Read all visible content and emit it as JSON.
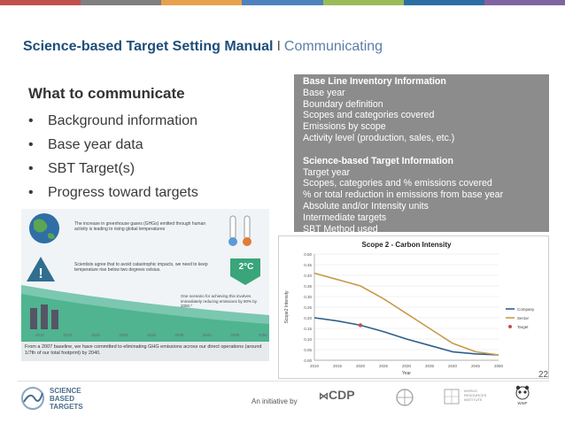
{
  "slide": {
    "title": "Science-based Target Setting Manual",
    "separator": "I",
    "subtitle": "Communicating",
    "accent_colors": [
      "#c0504d",
      "#7f7f7f",
      "#e7a14d",
      "#4f81bd",
      "#9bbb59",
      "#2c6ea3",
      "#8064a2"
    ],
    "page_number": "22"
  },
  "left_panel": {
    "heading": "What to communicate",
    "bullets": [
      "Background information",
      "Base year data",
      "SBT Target(s)",
      "Progress toward targets"
    ]
  },
  "info_box": {
    "section1_title": "Base Line Inventory Information",
    "section1_items": [
      "Base year",
      "Boundary definition",
      "Scopes and categories covered",
      "Emissions by scope",
      "Activity level (production, sales, etc.)"
    ],
    "section2_title": "Science-based Target Information",
    "section2_items": [
      "Target year",
      "Scopes, categories and % emissions covered",
      "% or total reduction in emissions from base year",
      "Absolute and/or Intensity units",
      "Intermediate targets",
      "SBT Method used"
    ]
  },
  "infographic": {
    "text1": "The increase in greenhouse gases (GHGs) emitted through human activity is leading to rising global temperatures",
    "text2": "Scientists agree that to avoid catastrophic impacts, we need to keep temperature rise below two degrees celsius.",
    "badge": "2°C",
    "text3": "One scenario for achieving this involves immediately reducing emissions by 80% by 2050.*",
    "years": [
      "2010",
      "2015",
      "2020",
      "2025",
      "2030",
      "2035",
      "2040",
      "2045",
      "2050"
    ],
    "caption": "From a 2007 baseline, we have committed to eliminating GHG emissions across our direct operations (around 1/7th of our total footprint) by 2040."
  },
  "chart_data": {
    "type": "line",
    "title": "Scope 2 - Carbon Intensity",
    "xlabel": "Year",
    "ylabel": "Scope2 Intensity",
    "x": [
      2010,
      2015,
      2020,
      2025,
      2030,
      2035,
      2040,
      2045,
      2050
    ],
    "ylim": [
      0,
      0.5
    ],
    "yticks": [
      "0.00",
      "0.05",
      "0.10",
      "0.15",
      "0.20",
      "0.25",
      "0.30",
      "0.35",
      "0.40",
      "0.45",
      "0.50"
    ],
    "series": [
      {
        "name": "Company",
        "color": "#2e5f8a",
        "values": [
          0.2,
          0.185,
          0.165,
          0.135,
          0.1,
          0.07,
          0.04,
          0.03,
          0.025
        ]
      },
      {
        "name": "Sector",
        "color": "#c99a4a",
        "values": [
          0.41,
          0.38,
          0.35,
          0.29,
          0.22,
          0.15,
          0.08,
          0.04,
          0.025
        ]
      }
    ],
    "target_point": {
      "name": "Target",
      "color": "#c0504d",
      "x": 2020,
      "y": 0.165
    },
    "grid": true,
    "legend": "right"
  },
  "footer": {
    "initiative_label": "An initiative by",
    "sbt_logo": [
      "SCIENCE",
      "BASED",
      "TARGETS"
    ],
    "partners": [
      "CDP",
      "UN Global Compact",
      "WORLD RESOURCES INSTITUTE",
      "WWF"
    ]
  }
}
